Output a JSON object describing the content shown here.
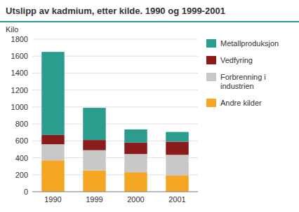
{
  "chart_data": {
    "type": "bar",
    "stacked": true,
    "title": "Utslipp av kadmium, etter kilde. 1990 og 1999-2001",
    "ylabel": "Kilo",
    "categories": [
      "1990",
      "1999",
      "2000",
      "2001"
    ],
    "series": [
      {
        "name": "Andre kilder",
        "color": "#F5A623",
        "values": [
          370,
          250,
          230,
          190
        ]
      },
      {
        "name": "Forbrenning i industrien",
        "color": "#C8C8C8",
        "values": [
          190,
          240,
          215,
          245
        ]
      },
      {
        "name": "Vedfyring",
        "color": "#8B1A1A",
        "values": [
          110,
          120,
          135,
          155
        ]
      },
      {
        "name": "Metallproduksjon",
        "color": "#2A9D8F",
        "values": [
          980,
          380,
          155,
          115
        ]
      }
    ],
    "ylim": [
      0,
      1800
    ],
    "yticks": [
      0,
      200,
      400,
      600,
      800,
      1000,
      1200,
      1400,
      1600,
      1800
    ],
    "grid": true,
    "legend": "right"
  }
}
